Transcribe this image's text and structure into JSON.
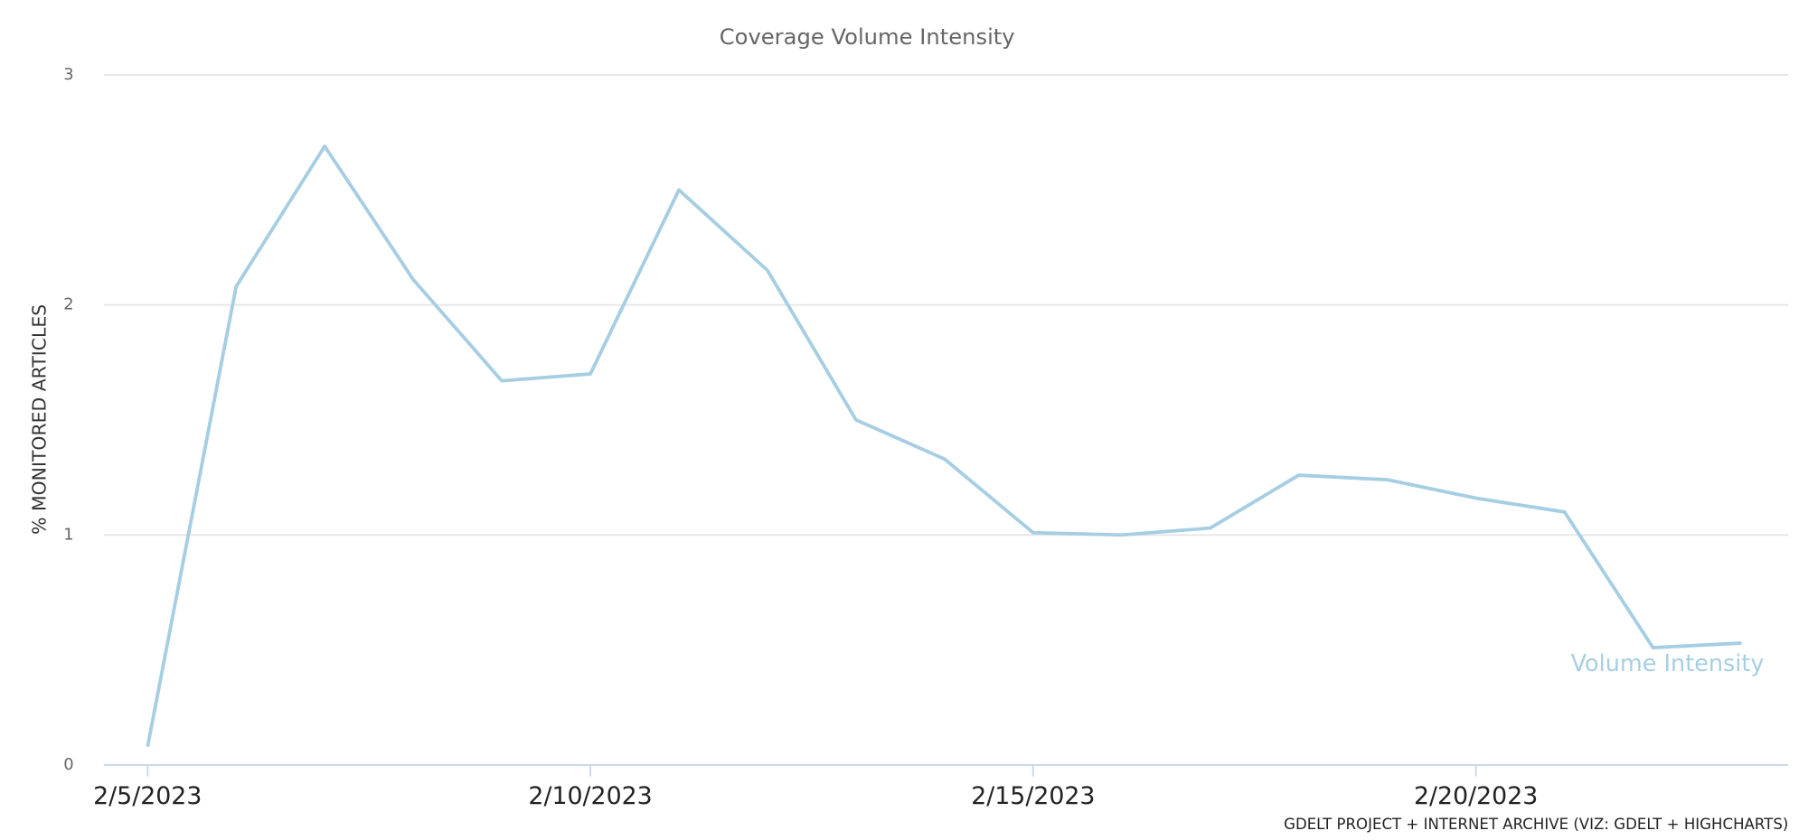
{
  "chart_data": {
    "type": "line",
    "title": "Coverage Volume Intensity",
    "y_label": "% MONITORED ARTICLES",
    "credit": "GDELT PROJECT + INTERNET ARCHIVE (VIZ: GDELT + HIGHCHARTS)",
    "x": [
      "2/5/2023",
      "2/6/2023",
      "2/7/2023",
      "2/8/2023",
      "2/9/2023",
      "2/10/2023",
      "2/11/2023",
      "2/12/2023",
      "2/13/2023",
      "2/14/2023",
      "2/15/2023",
      "2/16/2023",
      "2/17/2023",
      "2/18/2023",
      "2/19/2023",
      "2/20/2023",
      "2/21/2023",
      "2/22/2023",
      "2/23/2023"
    ],
    "xticks": [
      "2/5/2023",
      "2/10/2023",
      "2/15/2023",
      "2/20/2023"
    ],
    "series": [
      {
        "name": "Volume Intensity",
        "color": "#a6cee3",
        "values": [
          0.08,
          2.08,
          2.69,
          2.11,
          1.67,
          1.7,
          2.5,
          2.15,
          1.5,
          1.33,
          1.01,
          1.0,
          1.03,
          1.26,
          1.24,
          1.16,
          1.1,
          0.51,
          0.53
        ]
      }
    ],
    "ylim": [
      0,
      3
    ],
    "yticks": [
      0,
      1,
      2,
      3
    ],
    "grid": true
  }
}
